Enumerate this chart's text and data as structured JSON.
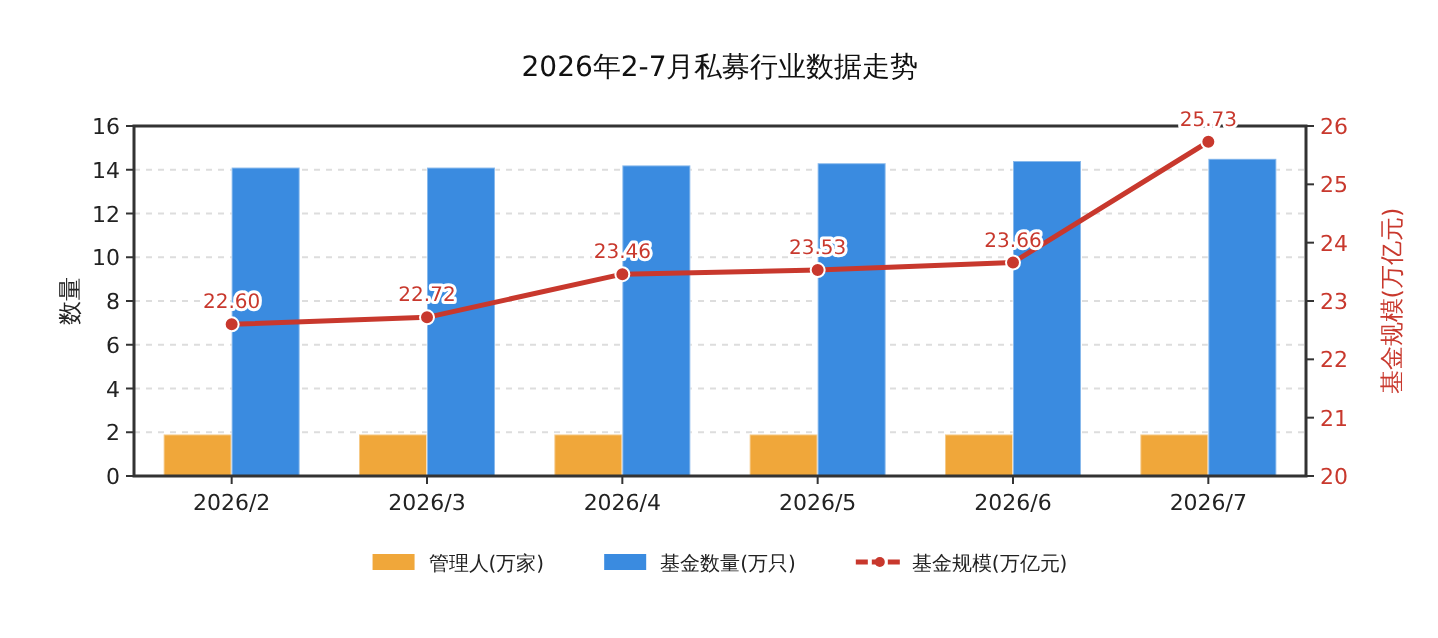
{
  "chart_data": {
    "type": "bar",
    "title": "2026年2-7月私募行业数据走势",
    "ylabel": "数量",
    "y2label": "基金规模(万亿元)",
    "categories": [
      "2026/2",
      "2026/3",
      "2026/4",
      "2026/5",
      "2026/6",
      "2026/7"
    ],
    "series": [
      {
        "name": "管理人(万家)",
        "color": "#f0a73a",
        "values": [
          1.9,
          1.9,
          1.9,
          1.9,
          1.9,
          1.9
        ]
      },
      {
        "name": "基金数量(万只)",
        "color": "#3a8be0",
        "values": [
          14.1,
          14.1,
          14.2,
          14.3,
          14.4,
          14.5
        ]
      },
      {
        "name": "基金规模(万亿元)",
        "type": "line",
        "axis": "y2",
        "color": "#c8382d",
        "marker": "circle",
        "values": [
          22.6,
          22.72,
          23.46,
          23.53,
          23.66,
          25.73
        ],
        "value_labels": [
          "22.60",
          "22.72",
          "23.46",
          "23.53",
          "23.66",
          "25.73"
        ]
      }
    ],
    "ylim": [
      0,
      16
    ],
    "yticks": [
      0,
      2,
      4,
      6,
      8,
      10,
      12,
      14,
      16
    ],
    "y2lim": [
      20,
      26
    ],
    "y2ticks": [
      20,
      21,
      22,
      23,
      24,
      25,
      26
    ],
    "grid": "y",
    "legend": "bottom"
  }
}
